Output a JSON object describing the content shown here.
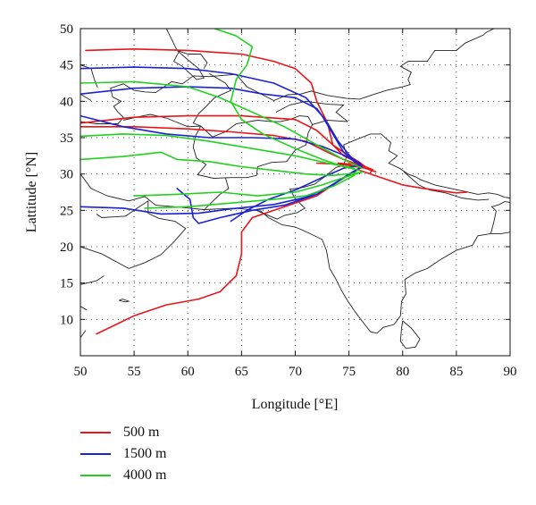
{
  "chart_data": {
    "type": "line",
    "subtype": "trajectory-map",
    "xlabel": "Longitude [°E]",
    "ylabel": "Lattitude [°N]",
    "xlim": [
      50,
      90
    ],
    "ylim": [
      5,
      50
    ],
    "xticks": [
      50,
      55,
      60,
      65,
      70,
      75,
      80,
      85,
      90
    ],
    "yticks": [
      10,
      15,
      20,
      25,
      30,
      35,
      40,
      45,
      50
    ],
    "grid": "dotted",
    "legend_position": "bottom-left, below plot",
    "colors": {
      "500 m": "#e8151b",
      "1500 m": "#1a22d4",
      "4000 m": "#22d11f"
    },
    "series": [
      {
        "name": "500 m",
        "color": "#e8151b",
        "trajectories": [
          [
            [
              50.5,
              47
            ],
            [
              55,
              47.2
            ],
            [
              60,
              47
            ],
            [
              65,
              46.5
            ],
            [
              68,
              45.5
            ],
            [
              70,
              44.5
            ],
            [
              71.5,
              42.5
            ],
            [
              72,
              40
            ],
            [
              73,
              37
            ],
            [
              73.5,
              34
            ],
            [
              74.5,
              32.5
            ],
            [
              75.5,
              31.8
            ],
            [
              76.2,
              31.2
            ]
          ],
          [
            [
              50,
              37
            ],
            [
              55,
              37.8
            ],
            [
              60,
              38
            ],
            [
              65,
              38
            ],
            [
              70,
              37.5
            ],
            [
              72,
              36
            ],
            [
              73.5,
              34
            ],
            [
              75,
              32.5
            ],
            [
              76,
              31.6
            ],
            [
              76.5,
              31
            ]
          ],
          [
            [
              50,
              36.5
            ],
            [
              55,
              36.5
            ],
            [
              60,
              36.2
            ],
            [
              64,
              35.8
            ],
            [
              68,
              35.3
            ],
            [
              71,
              34.5
            ],
            [
              73,
              33
            ],
            [
              74.5,
              32
            ],
            [
              75.5,
              31.5
            ],
            [
              76.3,
              31
            ]
          ],
          [
            [
              74,
              31.5
            ],
            [
              75.5,
              31.3
            ],
            [
              76.5,
              31
            ],
            [
              77.2,
              30.6
            ],
            [
              77,
              30.2
            ]
          ],
          [
            [
              76,
              30.5
            ],
            [
              78,
              29.5
            ],
            [
              80,
              28.5
            ],
            [
              82,
              28
            ],
            [
              84,
              27.6
            ],
            [
              85,
              27.4
            ],
            [
              86,
              27.5
            ]
          ],
          [
            [
              51.5,
              8
            ],
            [
              55,
              10.5
            ],
            [
              58,
              12
            ],
            [
              61,
              12.8
            ],
            [
              63,
              13.8
            ],
            [
              64.5,
              16
            ],
            [
              65,
              19
            ],
            [
              65,
              22
            ],
            [
              66,
              24
            ],
            [
              69,
              25.5
            ],
            [
              72,
              27
            ],
            [
              74,
              29
            ],
            [
              75.5,
              30.3
            ],
            [
              76.3,
              31
            ]
          ],
          [
            [
              72,
              31.5
            ],
            [
              74.5,
              31.3
            ],
            [
              76.5,
              30.8
            ],
            [
              77.5,
              30.3
            ]
          ]
        ]
      },
      {
        "name": "1500 m",
        "color": "#1a22d4",
        "trajectories": [
          [
            [
              50,
              44.5
            ],
            [
              55,
              44.7
            ],
            [
              60,
              44.5
            ],
            [
              64,
              43.8
            ],
            [
              68,
              42.5
            ],
            [
              71,
              40.5
            ],
            [
              72.5,
              38
            ],
            [
              73.5,
              35.5
            ],
            [
              74.5,
              33
            ],
            [
              75.5,
              31.7
            ],
            [
              76.2,
              31.2
            ]
          ],
          [
            [
              50,
              41
            ],
            [
              55,
              41.8
            ],
            [
              60,
              42
            ],
            [
              64,
              41.8
            ],
            [
              67,
              41
            ],
            [
              70,
              40.5
            ],
            [
              72,
              39
            ],
            [
              73,
              37
            ],
            [
              74,
              34.5
            ],
            [
              75.2,
              32.3
            ],
            [
              76,
              31.4
            ]
          ],
          [
            [
              50,
              38
            ],
            [
              54,
              36.5
            ],
            [
              58,
              35.5
            ],
            [
              62,
              35
            ],
            [
              66,
              35
            ],
            [
              70,
              34.8
            ],
            [
              72.5,
              33.8
            ],
            [
              74.5,
              32.6
            ],
            [
              76,
              31.5
            ]
          ],
          [
            [
              50,
              25.5
            ],
            [
              54,
              25.3
            ],
            [
              57.5,
              24.5
            ],
            [
              61,
              24.6
            ],
            [
              64,
              25.2
            ],
            [
              68,
              25.8
            ],
            [
              71,
              26.8
            ],
            [
              73.5,
              28.5
            ],
            [
              75,
              30
            ],
            [
              76.2,
              31
            ]
          ],
          [
            [
              59,
              28
            ],
            [
              60.2,
              26.5
            ],
            [
              60.5,
              24
            ],
            [
              61,
              23.2
            ],
            [
              63,
              24
            ],
            [
              66,
              25
            ],
            [
              69,
              25.7
            ],
            [
              72,
              27.2
            ],
            [
              74.5,
              29.5
            ],
            [
              76,
              30.8
            ]
          ],
          [
            [
              64,
              23.5
            ],
            [
              65.5,
              25
            ],
            [
              67.5,
              26.5
            ],
            [
              70,
              27.8
            ],
            [
              72.5,
              29.5
            ],
            [
              74.5,
              30.8
            ],
            [
              76,
              31.2
            ]
          ]
        ]
      },
      {
        "name": "4000 m",
        "color": "#22d11f",
        "trajectories": [
          [
            [
              62.5,
              50
            ],
            [
              64.5,
              49
            ],
            [
              66,
              47.5
            ],
            [
              65.5,
              45
            ],
            [
              64.5,
              43
            ],
            [
              64,
              40
            ],
            [
              65,
              37.5
            ],
            [
              67,
              35.5
            ],
            [
              70,
              33.5
            ],
            [
              72.5,
              32
            ],
            [
              74.5,
              31
            ],
            [
              76,
              30.5
            ]
          ],
          [
            [
              50,
              42.5
            ],
            [
              55,
              42.7
            ],
            [
              60,
              42
            ],
            [
              63,
              40.5
            ],
            [
              66,
              38.5
            ],
            [
              69,
              36.5
            ],
            [
              72,
              34
            ],
            [
              74.5,
              32
            ],
            [
              76.2,
              30.8
            ]
          ],
          [
            [
              50,
              35.2
            ],
            [
              54,
              35.5
            ],
            [
              58,
              35.3
            ],
            [
              62,
              34.5
            ],
            [
              66,
              33.5
            ],
            [
              70,
              32.5
            ],
            [
              73,
              31.5
            ],
            [
              75.5,
              30.8
            ]
          ],
          [
            [
              50,
              32
            ],
            [
              54,
              32.4
            ],
            [
              57.5,
              33
            ],
            [
              59,
              32
            ],
            [
              62,
              31.7
            ],
            [
              65,
              31
            ],
            [
              68,
              30.5
            ],
            [
              71,
              30
            ],
            [
              73.5,
              29.8
            ],
            [
              76,
              30.2
            ]
          ],
          [
            [
              55,
              27
            ],
            [
              59,
              27.2
            ],
            [
              63,
              27.5
            ],
            [
              66.5,
              27
            ],
            [
              70,
              27.5
            ],
            [
              72.5,
              28.5
            ],
            [
              74.5,
              29.5
            ],
            [
              76.3,
              30.3
            ]
          ],
          [
            [
              56,
              25.3
            ],
            [
              60,
              25.5
            ],
            [
              64,
              26
            ],
            [
              68,
              26.5
            ],
            [
              71,
              27
            ],
            [
              73.5,
              28.3
            ],
            [
              75.5,
              29.8
            ]
          ]
        ]
      }
    ]
  },
  "legend": [
    {
      "label": "500 m",
      "color": "#e8151b"
    },
    {
      "label": "1500 m",
      "color": "#1a22d4"
    },
    {
      "label": "4000 m",
      "color": "#22d11f"
    }
  ]
}
